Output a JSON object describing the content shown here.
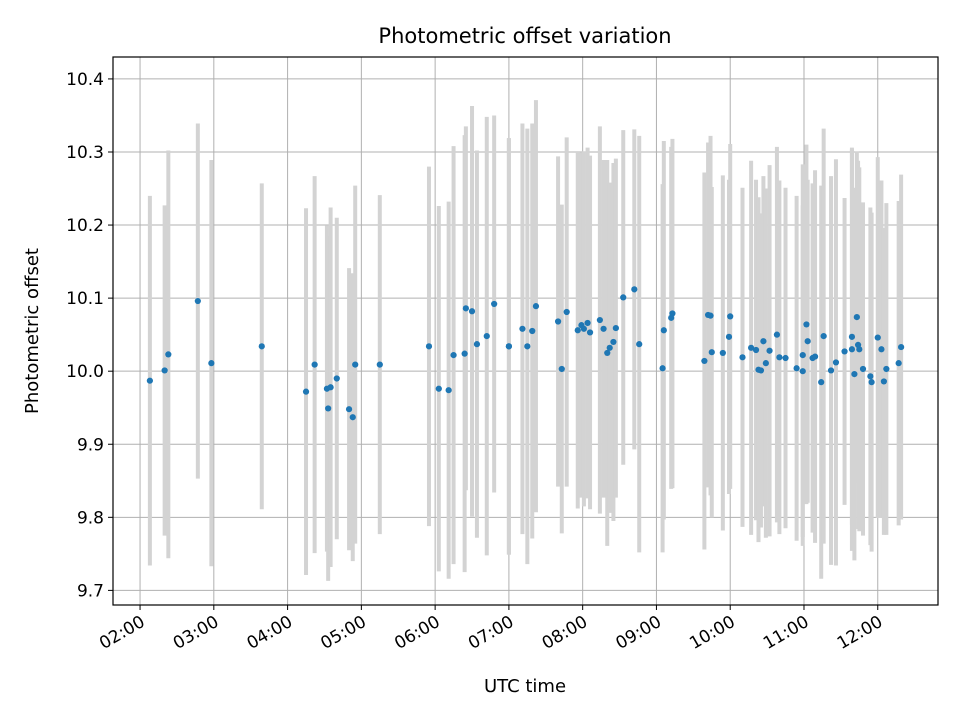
{
  "chart_data": {
    "type": "scatter",
    "title": "Photometric offset variation",
    "xlabel": "UTC time",
    "ylabel": "Photometric offset",
    "x_ticks": [
      "02:00",
      "03:00",
      "04:00",
      "05:00",
      "06:00",
      "07:00",
      "08:00",
      "09:00",
      "10:00",
      "11:00",
      "12:00"
    ],
    "y_ticks": [
      "9.7",
      "9.8",
      "9.9",
      "10.0",
      "10.1",
      "10.2",
      "10.3",
      "10.4"
    ],
    "xlim": [
      "01:38",
      "12:49"
    ],
    "ylim": [
      9.68,
      10.43
    ],
    "grid": true,
    "colors": {
      "points": "#1f77b4",
      "errorbars": "#d3d3d3",
      "grid": "#b0b0b0"
    },
    "series": [
      {
        "x": [
          "02:08",
          "02:20",
          "02:23",
          "02:47",
          "02:58",
          "03:39",
          "04:15",
          "04:22",
          "04:32",
          "04:33",
          "04:35",
          "04:40",
          "04:50",
          "04:53",
          "04:55",
          "05:15",
          "05:55",
          "06:03",
          "06:11",
          "06:15",
          "06:24",
          "06:25",
          "06:30",
          "06:34",
          "06:42",
          "06:48",
          "07:00",
          "07:00",
          "07:11",
          "07:15",
          "07:19",
          "07:22",
          "07:40",
          "07:43",
          "07:47",
          "07:56",
          "07:59",
          "08:01",
          "08:04",
          "08:06",
          "08:14",
          "08:17",
          "08:20",
          "08:22",
          "08:25",
          "08:27",
          "08:33",
          "08:42",
          "08:46",
          "09:05",
          "09:06",
          "09:12",
          "09:13",
          "09:39",
          "09:42",
          "09:44",
          "09:45",
          "09:54",
          "09:59",
          "10:00",
          "10:10",
          "10:17",
          "10:21",
          "10:23",
          "10:25",
          "10:27",
          "10:29",
          "10:32",
          "10:38",
          "10:40",
          "10:45",
          "10:54",
          "10:59",
          "10:59",
          "11:02",
          "11:03",
          "11:07",
          "11:09",
          "11:14",
          "11:16",
          "11:22",
          "11:26",
          "11:33",
          "11:39",
          "11:39",
          "11:41",
          "11:43",
          "11:44",
          "11:45",
          "11:48",
          "11:54",
          "11:55",
          "12:00",
          "12:03",
          "12:05",
          "12:07",
          "12:17",
          "12:19"
        ],
        "y": [
          9.987,
          10.001,
          10.023,
          10.096,
          10.011,
          10.034,
          9.972,
          10.009,
          9.976,
          9.949,
          9.978,
          9.99,
          9.948,
          9.937,
          10.009,
          10.009,
          10.034,
          9.976,
          9.974,
          10.022,
          10.024,
          10.086,
          10.082,
          10.037,
          10.048,
          10.092,
          10.034,
          10.034,
          10.058,
          10.034,
          10.055,
          10.089,
          10.068,
          10.003,
          10.081,
          10.056,
          10.063,
          10.058,
          10.066,
          10.053,
          10.07,
          10.058,
          10.025,
          10.032,
          10.04,
          10.059,
          10.101,
          10.112,
          10.037,
          10.004,
          10.056,
          10.073,
          10.079,
          10.014,
          10.077,
          10.076,
          10.026,
          10.025,
          10.047,
          10.075,
          10.019,
          10.032,
          10.029,
          10.002,
          10.001,
          10.041,
          10.011,
          10.028,
          10.05,
          10.019,
          10.018,
          10.004,
          10.0,
          10.022,
          10.064,
          10.041,
          10.018,
          10.02,
          9.985,
          10.048,
          10.001,
          10.012,
          10.027,
          10.047,
          10.03,
          9.996,
          10.074,
          10.036,
          10.03,
          10.003,
          9.993,
          9.985,
          10.046,
          10.03,
          9.986,
          10.003,
          10.011,
          10.033
        ],
        "yerr": [
          0.253,
          0.226,
          0.279,
          0.243,
          0.278,
          0.223,
          0.251,
          0.258,
          0.223,
          0.236,
          0.246,
          0.22,
          0.193,
          0.197,
          0.245,
          0.232,
          0.246,
          0.25,
          0.258,
          0.286,
          0.299,
          0.249,
          0.281,
          0.265,
          0.3,
          0.258,
          0.285,
          0.285,
          0.281,
          0.298,
          0.284,
          0.282,
          0.226,
          0.225,
          0.239,
          0.244,
          0.236,
          0.243,
          0.24,
          0.242,
          0.265,
          0.231,
          0.264,
          0.226,
          0.245,
          0.232,
          0.229,
          0.219,
          0.285,
          0.252,
          0.259,
          0.234,
          0.239,
          0.258,
          0.236,
          0.246,
          0.226,
          0.243,
          0.215,
          0.236,
          0.232,
          0.256,
          0.233,
          0.236,
          0.215,
          0.226,
          0.239,
          0.254,
          0.257,
          0.242,
          0.233,
          0.236,
          0.227,
          0.261,
          0.246,
          0.221,
          0.239,
          0.255,
          0.269,
          0.284,
          0.266,
          0.278,
          0.21,
          0.257,
          0.276,
          0.255,
          0.227,
          0.252,
          0.249,
          0.228,
          0.231,
          0.232,
          0.247,
          0.231,
          0.21,
          0.227,
          0.222,
          0.236
        ]
      }
    ]
  }
}
